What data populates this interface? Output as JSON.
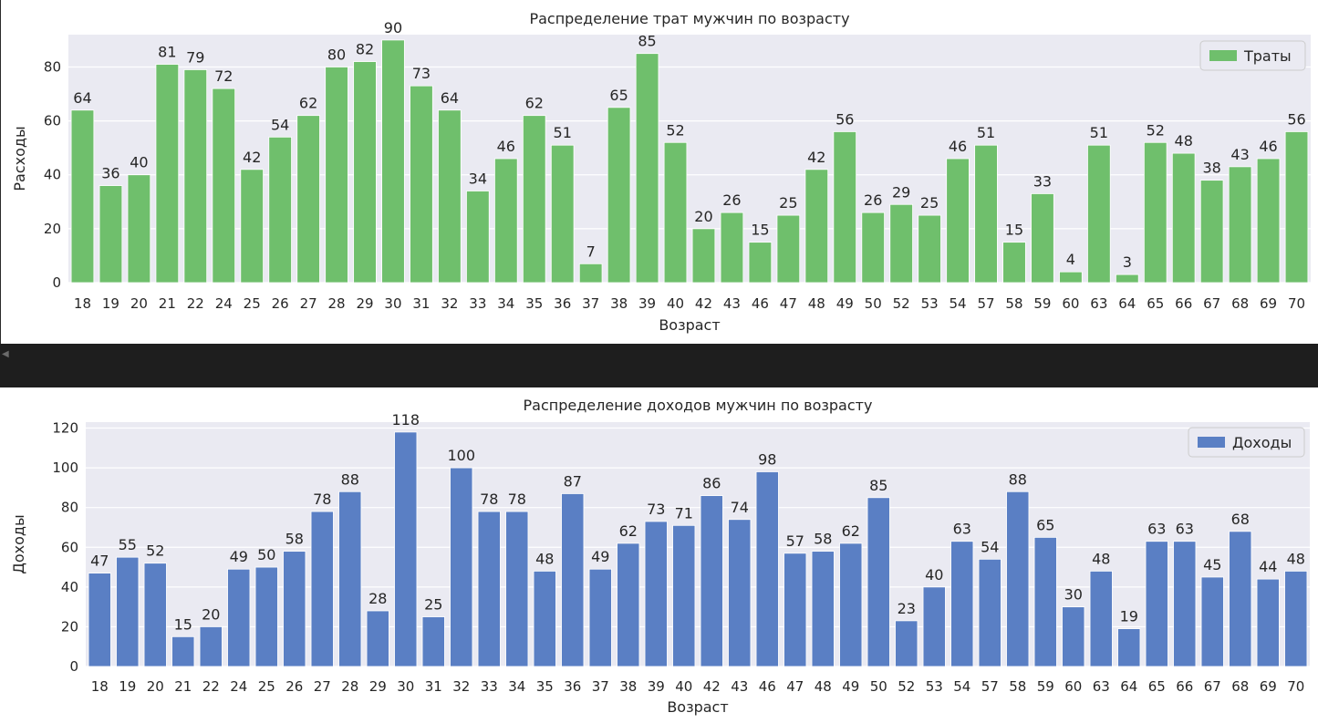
{
  "chart_data": [
    {
      "type": "bar",
      "title": "Распределение трат мужчин по возрасту",
      "xlabel": "Возраст",
      "ylabel": "Расходы",
      "ylim": [
        0,
        92
      ],
      "yticks": [
        0,
        20,
        40,
        60,
        80
      ],
      "grid": true,
      "legend_position": "top-right",
      "color": "#6fbf6c",
      "categories": [
        "18",
        "19",
        "20",
        "21",
        "22",
        "24",
        "25",
        "26",
        "27",
        "28",
        "29",
        "30",
        "31",
        "32",
        "33",
        "34",
        "35",
        "36",
        "37",
        "38",
        "39",
        "40",
        "42",
        "43",
        "46",
        "47",
        "48",
        "49",
        "50",
        "52",
        "53",
        "54",
        "57",
        "58",
        "59",
        "60",
        "63",
        "64",
        "65",
        "66",
        "67",
        "68",
        "69",
        "70"
      ],
      "series": [
        {
          "name": "Траты",
          "values": [
            64,
            36,
            40,
            81,
            79,
            72,
            42,
            54,
            62,
            80,
            82,
            90,
            73,
            64,
            34,
            46,
            62,
            51,
            7,
            65,
            85,
            52,
            20,
            26,
            15,
            25,
            42,
            56,
            26,
            29,
            25,
            46,
            51,
            15,
            33,
            4,
            51,
            3,
            52,
            48,
            38,
            43,
            46,
            56
          ]
        }
      ]
    },
    {
      "type": "bar",
      "title": "Распределение доходов мужчин по возрасту",
      "xlabel": "Возраст",
      "ylabel": "Доходы",
      "ylim": [
        0,
        123
      ],
      "yticks": [
        0,
        20,
        40,
        60,
        80,
        100,
        120
      ],
      "grid": true,
      "legend_position": "top-right",
      "color": "#5a7fc4",
      "categories": [
        "18",
        "19",
        "20",
        "21",
        "22",
        "24",
        "25",
        "26",
        "27",
        "28",
        "29",
        "30",
        "31",
        "32",
        "33",
        "34",
        "35",
        "36",
        "37",
        "38",
        "39",
        "40",
        "42",
        "43",
        "46",
        "47",
        "48",
        "49",
        "50",
        "52",
        "53",
        "54",
        "57",
        "58",
        "59",
        "60",
        "63",
        "64",
        "65",
        "66",
        "67",
        "68",
        "69",
        "70"
      ],
      "series": [
        {
          "name": "Доходы",
          "values": [
            47,
            55,
            52,
            15,
            20,
            49,
            50,
            58,
            78,
            88,
            28,
            118,
            25,
            100,
            78,
            78,
            48,
            87,
            49,
            62,
            73,
            71,
            86,
            74,
            98,
            57,
            58,
            62,
            85,
            23,
            40,
            63,
            54,
            88,
            65,
            30,
            48,
            19,
            63,
            63,
            45,
            68,
            44,
            48
          ]
        }
      ]
    }
  ]
}
